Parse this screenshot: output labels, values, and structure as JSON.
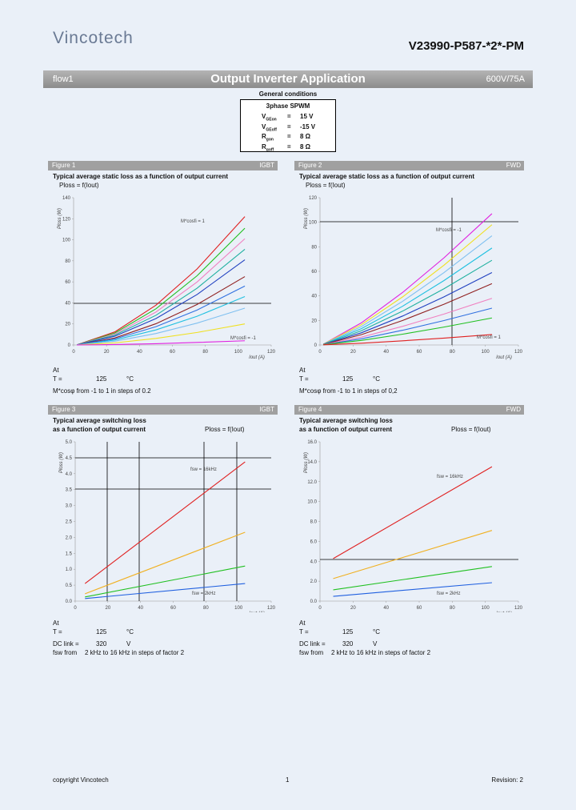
{
  "header": {
    "logo": "Vincotech",
    "part_number": "V23990-P587-*2*-PM"
  },
  "banner": {
    "left": "flow1",
    "title": "Output Inverter Application",
    "right": "600V/75A"
  },
  "conditions": {
    "title": "General conditions",
    "heading": "3phase SPWM",
    "rows": [
      {
        "symbol": "V",
        "sub": "GEon",
        "eq": "=",
        "value": "15 V"
      },
      {
        "symbol": "V",
        "sub": "GEoff",
        "eq": "=",
        "value": "-15 V"
      },
      {
        "symbol": "R",
        "sub": "gon",
        "eq": "=",
        "value": "8 Ω"
      },
      {
        "symbol": "R",
        "sub": "goff",
        "eq": "=",
        "value": "8 Ω"
      }
    ]
  },
  "figures": [
    {
      "label": "Figure 1",
      "tag": "IGBT",
      "title_lines": [
        "Typical average static loss as a function of output current"
      ],
      "formula": "Ploss = f(Iout)",
      "chart": {
        "type": "line",
        "ylabel": "Ploss (W)",
        "xlabel": "Iout (A)",
        "annotations": [
          "M*cosfi = 1",
          "M*cosfi = -1"
        ],
        "x": [
          2,
          25,
          50,
          75,
          104
        ],
        "xlim": [
          0,
          120
        ],
        "xticks": [
          0,
          20,
          40,
          60,
          80,
          100,
          120
        ],
        "ylim": [
          0,
          140
        ],
        "yticks": [
          0,
          20,
          40,
          60,
          80,
          100,
          120,
          140
        ],
        "series": [
          {
            "color": "#e02020",
            "values": [
              0.2,
              12.4,
              37.8,
              72.3,
              122
            ]
          },
          {
            "color": "#20c020",
            "values": [
              0.2,
              11.3,
              34.4,
              65.8,
              111
            ]
          },
          {
            "color": "#f080c0",
            "values": [
              0.2,
              10.3,
              31.3,
              59.9,
              101
            ]
          },
          {
            "color": "#20b0a0",
            "values": [
              0.2,
              9.3,
              28.2,
              54,
              91
            ]
          },
          {
            "color": "#2040c0",
            "values": [
              0.1,
              8.3,
              25.1,
              48,
              81
            ]
          },
          {
            "color": "#902020",
            "values": [
              0.1,
              6.6,
              20.2,
              38.5,
              65
            ]
          },
          {
            "color": "#3070e0",
            "values": [
              0.1,
              5.7,
              17.4,
              33.2,
              56
            ]
          },
          {
            "color": "#20c0e0",
            "values": [
              0.1,
              4.7,
              14.3,
              27.3,
              46
            ]
          },
          {
            "color": "#80c0f0",
            "values": [
              0.1,
              3.6,
              10.9,
              20.8,
              35
            ]
          },
          {
            "color": "#f0e020",
            "values": [
              0,
              2,
              6.2,
              11.9,
              20
            ]
          },
          {
            "color": "#e020e0",
            "values": [
              0,
              0.4,
              1.2,
              2.4,
              4
            ]
          }
        ]
      },
      "notes": [
        [
          "At"
        ],
        [
          "T =",
          "125",
          "°C"
        ],
        [
          "M*cosφ from -1 to 1 in steps of 0.2"
        ]
      ]
    },
    {
      "label": "Figure 2",
      "tag": "FWD",
      "title_lines": [
        "Typical average static loss as a function of output current"
      ],
      "formula": "Ploss = f(Iout)",
      "chart": {
        "type": "line",
        "ylabel": "Ploss (W)",
        "xlabel": "Iout (A)",
        "annotations": [
          "M*cosfi = -1",
          "M*cosfi = 1"
        ],
        "x": [
          2,
          25,
          50,
          75,
          104
        ],
        "xlim": [
          0,
          120
        ],
        "xticks": [
          0,
          20,
          40,
          60,
          80,
          100,
          120
        ],
        "ylim": [
          0,
          120
        ],
        "yticks": [
          0,
          20,
          40,
          60,
          80,
          100,
          120
        ],
        "series": [
          {
            "color": "#e020e0",
            "values": [
              0.7,
              18,
              42.8,
              71,
              107
            ]
          },
          {
            "color": "#f0e020",
            "values": [
              0.7,
              16.5,
              39.2,
              65,
              98
            ]
          },
          {
            "color": "#80c0f0",
            "values": [
              0.6,
              15,
              35.6,
              59,
              89
            ]
          },
          {
            "color": "#20c0e0",
            "values": [
              0.6,
              13.3,
              31.6,
              52.5,
              79
            ]
          },
          {
            "color": "#20b0a0",
            "values": [
              0.5,
              11.6,
              27.6,
              45.8,
              69
            ]
          },
          {
            "color": "#2040c0",
            "values": [
              0.4,
              9.9,
              23.6,
              39.2,
              59
            ]
          },
          {
            "color": "#902020",
            "values": [
              0.4,
              8.4,
              20,
              33.2,
              50
            ]
          },
          {
            "color": "#f080c0",
            "values": [
              0.3,
              6.4,
              15.2,
              25.2,
              38
            ]
          },
          {
            "color": "#3070e0",
            "values": [
              0.2,
              5,
              12,
              19.9,
              30
            ]
          },
          {
            "color": "#20c020",
            "values": [
              0.2,
              3.7,
              8.8,
              14.6,
              22
            ]
          },
          {
            "color": "#e02020",
            "values": [
              0.1,
              1.4,
              3.4,
              5.6,
              8.5
            ]
          }
        ]
      },
      "notes": [
        [
          "At"
        ],
        [
          "T =",
          "125",
          "°C"
        ],
        [
          "M*cosφ from -1 to 1 in steps of 0,2"
        ]
      ]
    },
    {
      "label": "Figure 3",
      "tag": "IGBT",
      "title_lines": [
        "Typical average switching loss",
        "as a function of output current"
      ],
      "formula": "Ploss = f(Iout)",
      "chart": {
        "type": "line",
        "ylabel": "Ploss (W)",
        "xlabel": "Iout (A)",
        "annotations": [
          "fsw = 16kHz",
          "fsw = 2kHz"
        ],
        "x": [
          6,
          104
        ],
        "xlim": [
          0,
          120
        ],
        "xticks": [
          0,
          20,
          40,
          60,
          80,
          100,
          120
        ],
        "ylim": [
          0,
          5
        ],
        "yticks": [
          {
            "value": 0,
            "label": "0.0"
          },
          0.5,
          {
            "value": 1,
            "label": "1.0"
          },
          1.5,
          {
            "value": 2,
            "label": "2.0"
          },
          2.5,
          {
            "value": 3,
            "label": "3.0"
          },
          3.5,
          {
            "value": 4,
            "label": "4.0"
          },
          4.5,
          {
            "value": 5,
            "label": "5.0"
          }
        ],
        "series": [
          {
            "color": "#e02020",
            "values": [
              0.55,
              4.37
            ]
          },
          {
            "color": "#f0b020",
            "values": [
              0.23,
              2.16
            ]
          },
          {
            "color": "#20c020",
            "values": [
              0.13,
              1.1
            ]
          },
          {
            "color": "#2060e0",
            "values": [
              0.08,
              0.55
            ]
          }
        ]
      },
      "notes": [
        [
          "At"
        ],
        [
          "T =",
          "125",
          "°C"
        ],
        [
          "DC link =",
          "320",
          "V"
        ],
        [
          "fsw from",
          "2 kHz to 16 kHz in steps of factor 2"
        ]
      ]
    },
    {
      "label": "Figure 4",
      "tag": "FWD",
      "title_lines": [
        "Typical average switching loss",
        "as a function of output current"
      ],
      "formula": "Ploss = f(Iout)",
      "chart": {
        "type": "line",
        "ylabel": "Ploss (W)",
        "xlabel": "Iout (A)",
        "annotations": [
          "fsw = 16kHz",
          "fsw = 2kHz"
        ],
        "x": [
          8,
          104
        ],
        "xlim": [
          0,
          120
        ],
        "xticks": [
          0,
          20,
          40,
          60,
          80,
          100,
          120
        ],
        "ylim": [
          0,
          16
        ],
        "yticks": [
          {
            "value": 0,
            "label": "0.0"
          },
          {
            "value": 2,
            "label": "2.0"
          },
          {
            "value": 4,
            "label": "4.0"
          },
          {
            "value": 6,
            "label": "6.0"
          },
          {
            "value": 8,
            "label": "8.0"
          },
          {
            "value": 10,
            "label": "10.0"
          },
          {
            "value": 12,
            "label": "12.0"
          },
          {
            "value": 14,
            "label": "14.0"
          },
          {
            "value": 16,
            "label": "16.0"
          }
        ],
        "series": [
          {
            "color": "#e02020",
            "values": [
              4.27,
              13.5
            ]
          },
          {
            "color": "#f0b020",
            "values": [
              2.26,
              7.1
            ]
          },
          {
            "color": "#20c020",
            "values": [
              1.13,
              3.47
            ]
          },
          {
            "color": "#2060e0",
            "values": [
              0.48,
              1.85
            ]
          }
        ]
      },
      "notes": [
        [
          "At"
        ],
        [
          "T =",
          "125",
          "°C"
        ],
        [
          "DC link =",
          "320",
          "V"
        ],
        [
          "fsw from",
          "2 kHz to 16 kHz in steps of factor 2"
        ]
      ]
    }
  ],
  "footer": {
    "left": "copyright Vincotech",
    "center": "1",
    "right": "Revision: 2"
  }
}
